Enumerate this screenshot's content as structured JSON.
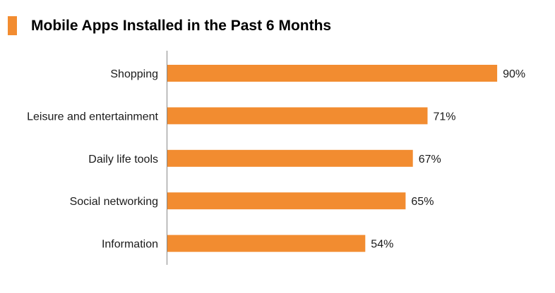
{
  "chart_data": {
    "type": "bar",
    "orientation": "horizontal",
    "title": "Mobile Apps Installed in the Past 6 Months",
    "categories": [
      "Shopping",
      "Leisure and entertainment",
      "Daily life tools",
      "Social networking",
      "Information"
    ],
    "values": [
      90,
      71,
      67,
      65,
      54
    ],
    "value_labels": [
      "90%",
      "71%",
      "67%",
      "65%",
      "54%"
    ],
    "unit": "%",
    "xlim": [
      0,
      100
    ],
    "grid": false,
    "legend": "none",
    "colors": {
      "bar": "#f28c30",
      "title_marker": "#f28c30",
      "axis": "#888888",
      "text": "#1a1a1a"
    }
  }
}
